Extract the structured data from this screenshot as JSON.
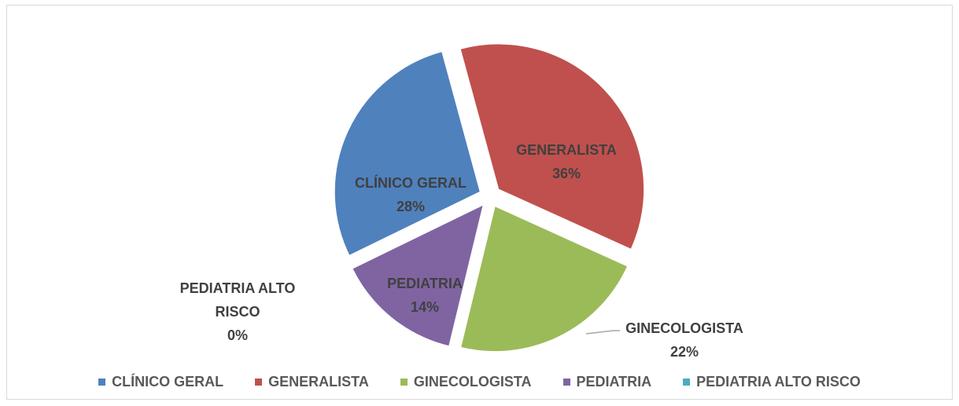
{
  "chart_data": {
    "type": "pie",
    "categories": [
      "CLÍNICO GERAL",
      "GENERALISTA",
      "GINECOLOGISTA",
      "PEDIATRIA",
      "PEDIATRIA ALTO RISCO"
    ],
    "values": [
      28,
      36,
      22,
      14,
      0
    ],
    "value_labels": [
      "28%",
      "36%",
      "22%",
      "14%",
      "0%"
    ],
    "colors": [
      "#4f81bd",
      "#c0504d",
      "#9bbb59",
      "#8064a2",
      "#4bacc6"
    ],
    "legend": "bottom"
  }
}
